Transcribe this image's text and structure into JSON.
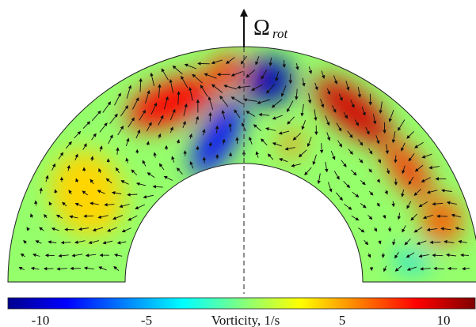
{
  "figure": {
    "axis_symbol": "Ω",
    "axis_subscript": "rot",
    "colorbar": {
      "label": "Vorticity, 1/s",
      "ticks": [
        "-10",
        "-5",
        "5",
        "10"
      ],
      "range": [
        -12,
        12
      ],
      "colors": [
        "#00008f",
        "#0000ff",
        "#0080ff",
        "#00ffff",
        "#80ff80",
        "#ffff00",
        "#ff8000",
        "#ff0000",
        "#800000"
      ]
    },
    "field": {
      "background_value": 0.5,
      "features": [
        {
          "name": "left-red-band",
          "value": 9
        },
        {
          "name": "left-red-top",
          "value": 8
        },
        {
          "name": "center-blue-core",
          "value": -11
        },
        {
          "name": "center-blue-lower",
          "value": -9
        },
        {
          "name": "right-red-band",
          "value": 10
        },
        {
          "name": "right-red-tail",
          "value": 8
        },
        {
          "name": "right-orange-bottom",
          "value": 7
        },
        {
          "name": "left-yellow",
          "value": 4
        },
        {
          "name": "small-orange-spot",
          "value": 6
        },
        {
          "name": "right-blue-spot",
          "value": -4
        }
      ]
    }
  }
}
